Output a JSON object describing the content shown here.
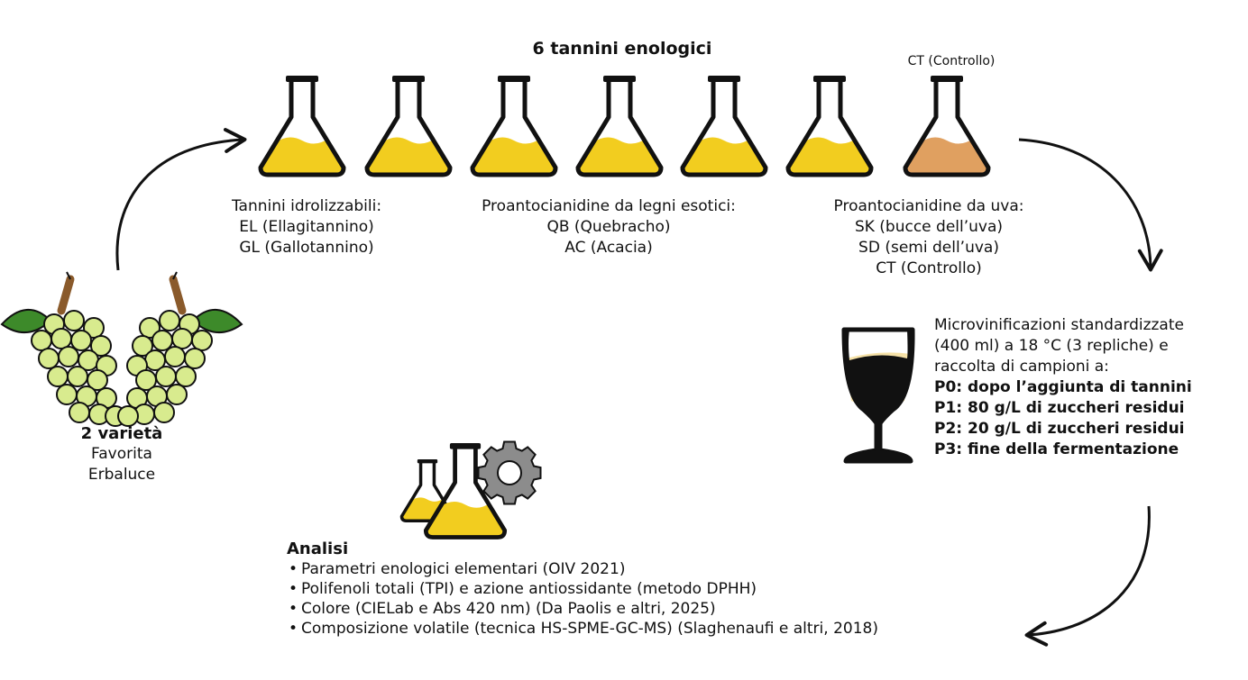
{
  "colors": {
    "tannin_liquid": "#f2cd1f",
    "control_liquid": "#e0a060",
    "wine": "#f6e2a8",
    "grape": "#d8eb8e",
    "leaf": "#3d8a2a",
    "stem": "#8a5a2b",
    "gear": "#8c8c8c",
    "outline": "#111111"
  },
  "top": {
    "title": "6 tannini enologici",
    "control_label": "CT (Controllo)"
  },
  "groups": [
    {
      "heading": "Tannini idrolizzabili:",
      "items": [
        "EL (Ellagitannino)",
        "GL (Gallotannino)"
      ]
    },
    {
      "heading": "Proantocianidine da legni esotici:",
      "items": [
        "QB (Quebracho)",
        "AC (Acacia)"
      ]
    },
    {
      "heading": "Proantocianidine da uva:",
      "items": [
        "SK (bucce dell’uva)",
        "SD (semi dell’uva)",
        "CT (Controllo)"
      ]
    }
  ],
  "varieties": {
    "title": "2 varietà",
    "items": [
      "Favorita",
      "Erbaluce"
    ]
  },
  "microvinification": {
    "lines": [
      "Microvinificazioni standardizzate",
      "(400 ml) a 18 °C (3 repliche) e",
      "raccolta di campioni a:"
    ],
    "points": [
      "P0: dopo l’aggiunta di tannini",
      "P1: 80 g/L di zuccheri residui",
      "P2: 20 g/L di zuccheri residui",
      "P3: fine della fermentazione"
    ]
  },
  "analysis": {
    "title": "Analisi",
    "items": [
      "Parametri enologici elementari (OIV 2021)",
      "Polifenoli totali (TPI) e azione antiossidante (metodo DPHH)",
      "Colore (CIELab e Abs 420 nm) (Da Paolis e altri, 2025)",
      "Composizione volatile (tecnica HS-SPME-GC-MS) (Slaghenaufi e altri, 2018)"
    ]
  }
}
